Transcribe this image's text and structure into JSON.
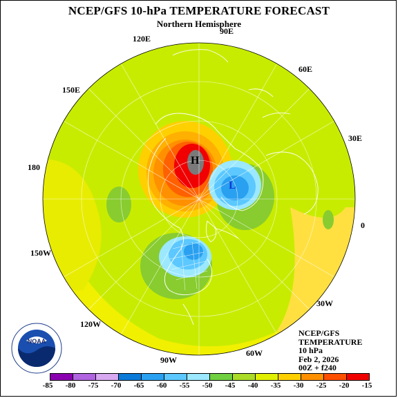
{
  "title": "NCEP/GFS 10-hPa TEMPERATURE FORECAST",
  "subtitle": "Northern Hemisphere",
  "longitude_labels": [
    "90E",
    "120E",
    "60E",
    "150E",
    "30E",
    "180",
    "0",
    "150W",
    "30W",
    "120W",
    "60W",
    "90W"
  ],
  "info": {
    "line1": "NCEP/GFS",
    "line2": "TEMPERATURE",
    "line3": "10 hPa",
    "line4": "Feb 2, 2026",
    "line5": "00Z + f240"
  },
  "high_label": "H",
  "low_label": "L",
  "logo_text": "NOAA",
  "colorbar": {
    "colors": [
      "#8a00b0",
      "#b064e0",
      "#d8a8f0",
      "#0a7ad8",
      "#2aa0f0",
      "#5cc8ff",
      "#9ce8ff",
      "#70d040",
      "#aadc28",
      "#e0f000",
      "#ffd000",
      "#ff9000",
      "#ff5000",
      "#f00000",
      "#a06060",
      "#8c8c8c",
      "#c0c0c0"
    ],
    "labels": [
      "-85",
      "-80",
      "-75",
      "-70",
      "-65",
      "-60",
      "-55",
      "-50",
      "-45",
      "-40",
      "-35",
      "-30",
      "-25",
      "-20",
      "-15"
    ]
  }
}
